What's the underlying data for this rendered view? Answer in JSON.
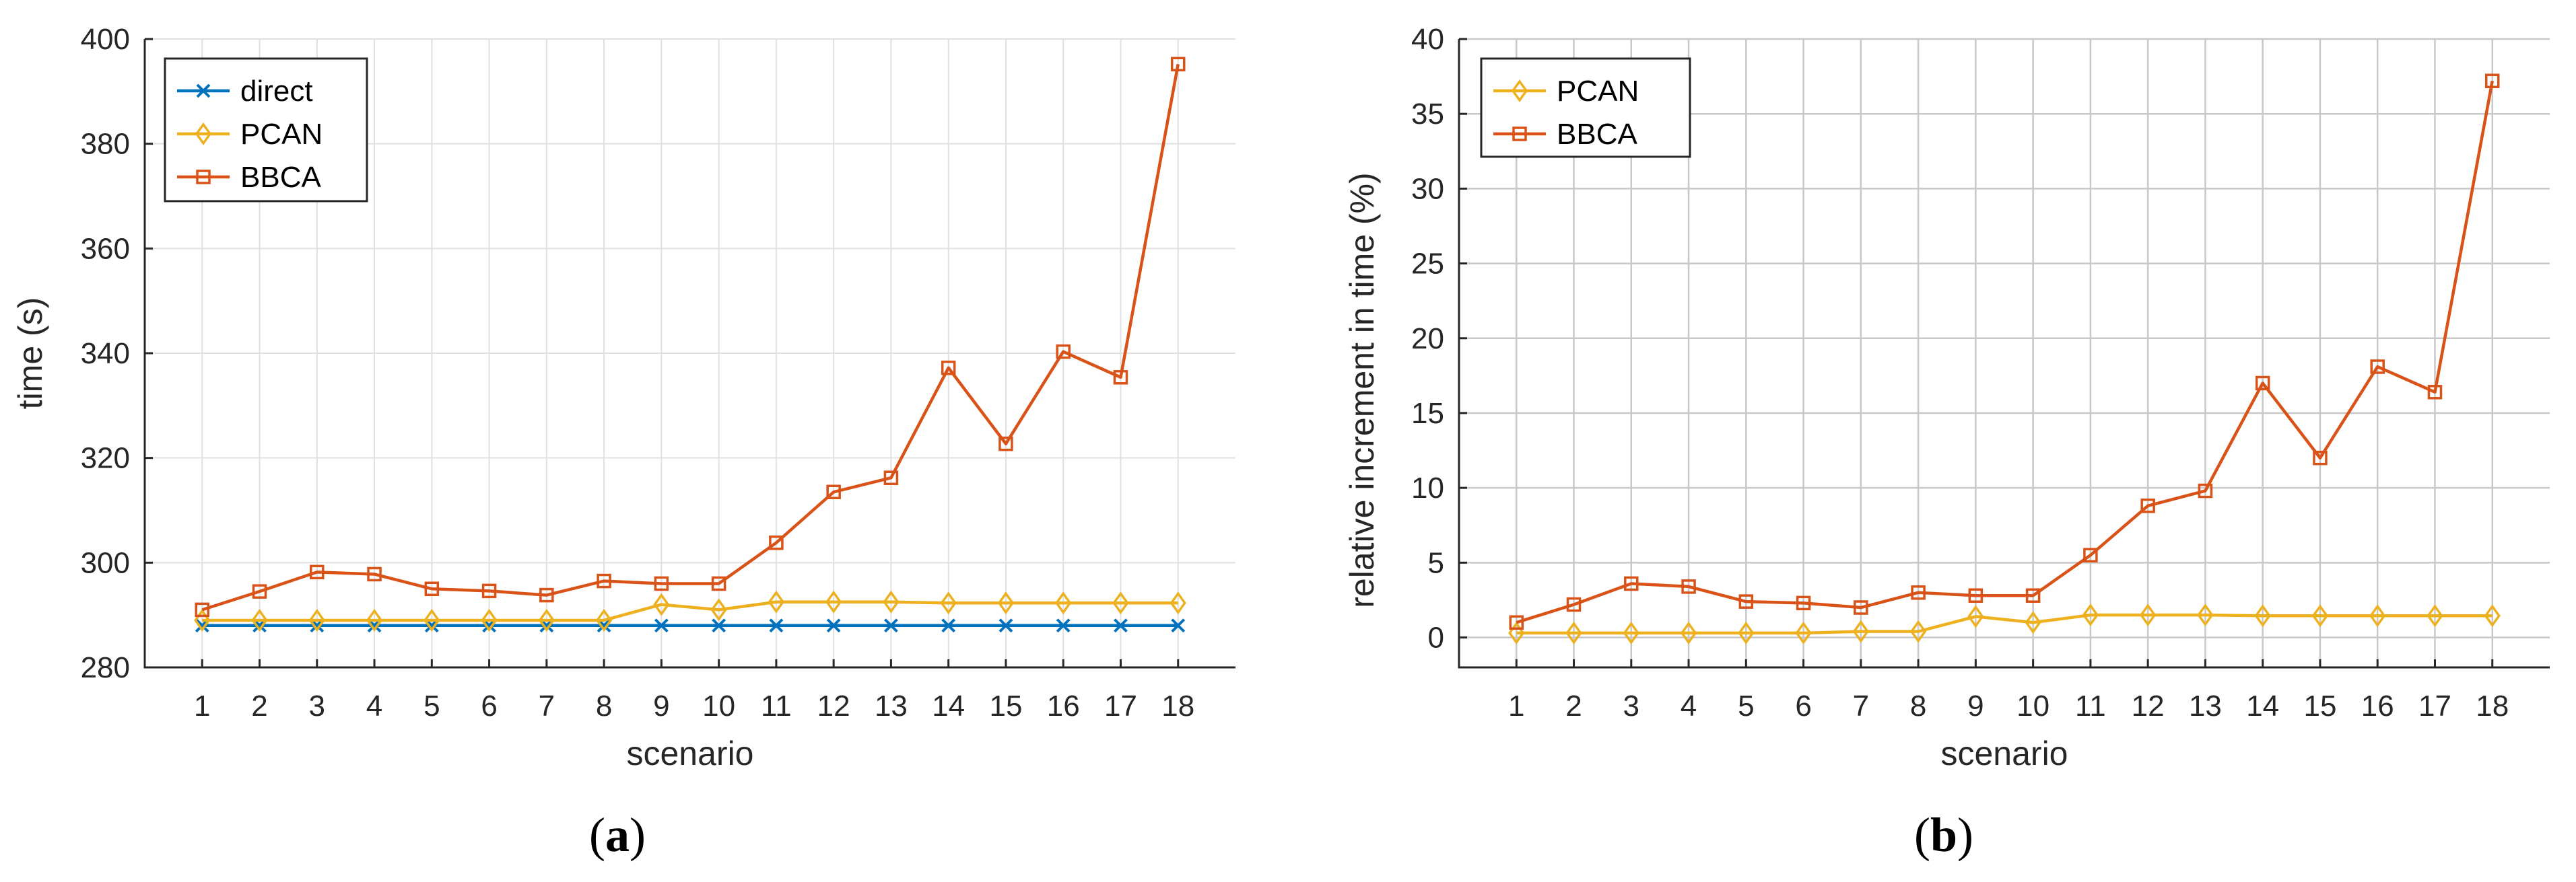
{
  "colors": {
    "direct": "#0072BD",
    "PCAN": "#EDB120",
    "BBCA": "#D95319"
  },
  "chart_data": [
    {
      "type": "line",
      "panel": "a",
      "caption_letter": "a",
      "title": "",
      "xlabel": "scenario",
      "ylabel": "time (s)",
      "ylim": [
        280,
        400
      ],
      "yticks": [
        280,
        300,
        320,
        340,
        360,
        380,
        400
      ],
      "xlim": [
        0,
        19
      ],
      "x": [
        1,
        2,
        3,
        4,
        5,
        6,
        7,
        8,
        9,
        10,
        11,
        12,
        13,
        14,
        15,
        16,
        17,
        18
      ],
      "legend_position": "top-left",
      "series": [
        {
          "name": "direct",
          "color_key": "direct",
          "marker": "x",
          "values": [
            288,
            288,
            288,
            288,
            288,
            288,
            288,
            288,
            288,
            288,
            288,
            288,
            288,
            288,
            288,
            288,
            288,
            288
          ]
        },
        {
          "name": "PCAN",
          "color_key": "PCAN",
          "marker": "diamond",
          "values": [
            289,
            289,
            289,
            289,
            289,
            289,
            289,
            289,
            292,
            291,
            292.5,
            292.5,
            292.5,
            292.3,
            292.3,
            292.3,
            292.3,
            292.3
          ]
        },
        {
          "name": "BBCA",
          "color_key": "BBCA",
          "marker": "square",
          "values": [
            291,
            294.5,
            298.2,
            297.8,
            295,
            294.6,
            293.8,
            296.5,
            296,
            296,
            303.8,
            313.5,
            316.2,
            337.2,
            322.7,
            340.3,
            335.4,
            395.2
          ]
        }
      ]
    },
    {
      "type": "line",
      "panel": "b",
      "caption_letter": "b",
      "title": "",
      "xlabel": "scenario",
      "ylabel": "relative increment in time (%)",
      "ylim": [
        -2,
        40
      ],
      "yticks": [
        0,
        5,
        10,
        15,
        20,
        25,
        30,
        35,
        40
      ],
      "xlim": [
        0,
        19
      ],
      "x": [
        1,
        2,
        3,
        4,
        5,
        6,
        7,
        8,
        9,
        10,
        11,
        12,
        13,
        14,
        15,
        16,
        17,
        18
      ],
      "legend_position": "top-left",
      "series": [
        {
          "name": "PCAN",
          "color_key": "PCAN",
          "marker": "diamond",
          "values": [
            0.3,
            0.3,
            0.3,
            0.3,
            0.3,
            0.3,
            0.4,
            0.4,
            1.4,
            1.0,
            1.5,
            1.5,
            1.5,
            1.45,
            1.45,
            1.45,
            1.45,
            1.45
          ]
        },
        {
          "name": "BBCA",
          "color_key": "BBCA",
          "marker": "square",
          "values": [
            1.0,
            2.2,
            3.6,
            3.4,
            2.4,
            2.3,
            2.0,
            3.0,
            2.8,
            2.8,
            5.5,
            8.8,
            9.8,
            17.0,
            12.0,
            18.1,
            16.4,
            37.2
          ]
        }
      ]
    }
  ]
}
